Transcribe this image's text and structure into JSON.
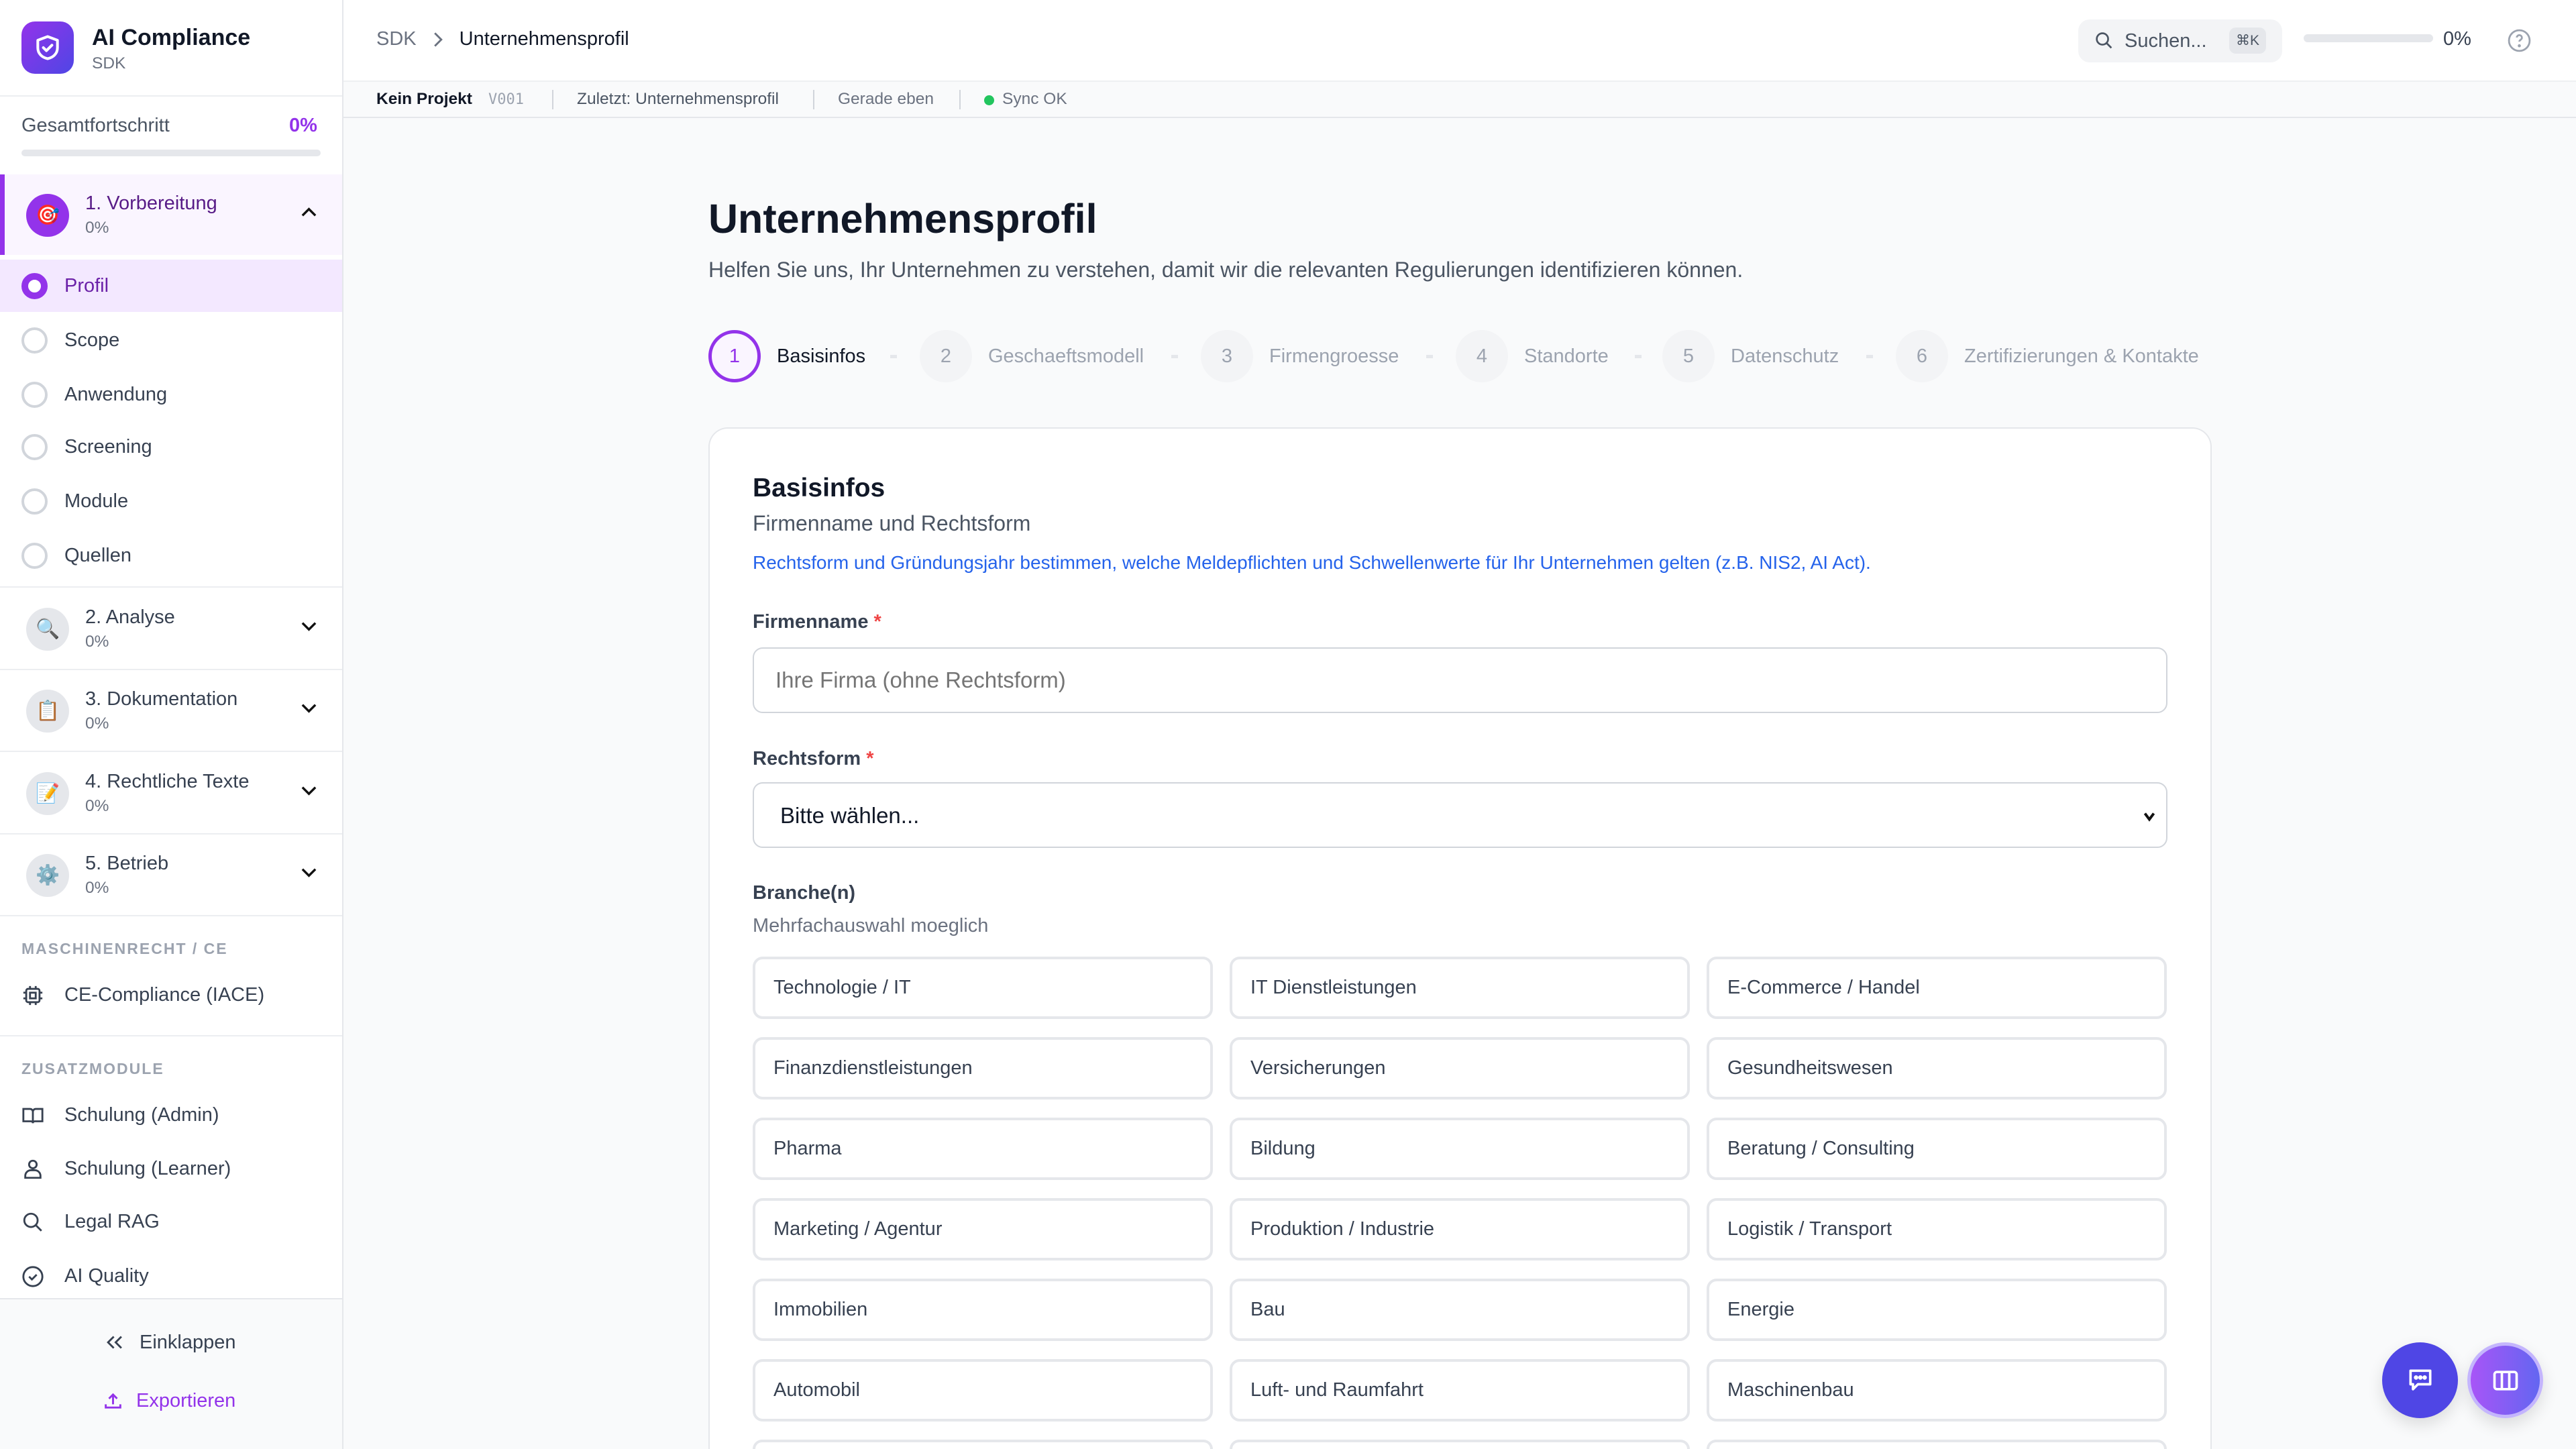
{
  "app": {
    "title": "AI Compliance",
    "subtitle": "SDK"
  },
  "colors": {
    "accent": "#9333ea",
    "brand_gradient": [
      "#9333ea",
      "#4f46e5"
    ],
    "link": "#2563eb",
    "required": "#ef4444",
    "sync_ok": "#22c55e",
    "chat_button": "#4f46e5"
  },
  "sidebar": {
    "overall": {
      "label": "Gesamtfortschritt",
      "value": "0%",
      "progress": 0
    },
    "sections": [
      {
        "title": "1. Vorbereitung",
        "progress": "0%",
        "icon": "target-icon",
        "glyph": "🎯",
        "expanded": true
      },
      {
        "title": "2. Analyse",
        "progress": "0%",
        "icon": "magnifier-icon",
        "glyph": "🔍",
        "expanded": false
      },
      {
        "title": "3. Dokumentation",
        "progress": "0%",
        "icon": "clipboard-icon",
        "glyph": "📋",
        "expanded": false
      },
      {
        "title": "4. Rechtliche Texte",
        "progress": "0%",
        "icon": "memo-icon",
        "glyph": "📝",
        "expanded": false
      },
      {
        "title": "5. Betrieb",
        "progress": "0%",
        "icon": "gear-icon",
        "glyph": "⚙️",
        "expanded": false
      }
    ],
    "substeps": [
      {
        "label": "Profil",
        "active": true
      },
      {
        "label": "Scope"
      },
      {
        "label": "Anwendung"
      },
      {
        "label": "Screening"
      },
      {
        "label": "Module"
      },
      {
        "label": "Quellen"
      }
    ],
    "group_ce": {
      "caption": "MASCHINENRECHT / CE",
      "items": [
        {
          "label": "CE-Compliance (IACE)",
          "icon": "chip-icon"
        }
      ]
    },
    "group_extra": {
      "caption": "ZUSATZMODULE",
      "items": [
        {
          "label": "Schulung (Admin)",
          "icon": "book-icon"
        },
        {
          "label": "Schulung (Learner)",
          "icon": "user-icon"
        },
        {
          "label": "Legal RAG",
          "icon": "search-icon"
        },
        {
          "label": "AI Quality",
          "icon": "check-circle-icon"
        }
      ]
    },
    "collapse": "Einklappen",
    "export": "Exportieren"
  },
  "topbar": {
    "breadcrumb": [
      "SDK",
      "Unternehmensprofil"
    ],
    "search": {
      "placeholder": "Suchen...",
      "shortcut": "⌘K"
    },
    "progress": {
      "value": "0%",
      "fraction": 0
    }
  },
  "statusbar": {
    "project": "Kein Projekt",
    "version": "V001",
    "last": "Zuletzt: Unternehmensprofil",
    "time": "Gerade eben",
    "sync": "Sync OK"
  },
  "page": {
    "title": "Unternehmensprofil",
    "subtitle": "Helfen Sie uns, Ihr Unternehmen zu verstehen, damit wir die relevanten Regulierungen identifizieren können.",
    "steps": [
      {
        "num": "1",
        "label": "Basisinfos",
        "active": true
      },
      {
        "num": "2",
        "label": "Geschaeftsmodell"
      },
      {
        "num": "3",
        "label": "Firmengroesse"
      },
      {
        "num": "4",
        "label": "Standorte"
      },
      {
        "num": "5",
        "label": "Datenschutz"
      },
      {
        "num": "6",
        "label": "Zertifizierungen & Kontakte"
      }
    ]
  },
  "card": {
    "title": "Basisinfos",
    "subtitle": "Firmenname und Rechtsform",
    "info": "Rechtsform und Gründungsjahr bestimmen, welche Meldepflichten und Schwellenwerte für Ihr Unternehmen gelten (z.B. NIS2, AI Act).",
    "company_label": "Firmenname",
    "company_placeholder": "Ihre Firma (ohne Rechtsform)",
    "company_value": "",
    "legal_label": "Rechtsform",
    "legal_value": "Bitte wählen...",
    "required_mark": "*",
    "industry_label": "Branche(n)",
    "industry_hint": "Mehrfachauswahl moeglich",
    "industries": [
      "Technologie / IT",
      "IT Dienstleistungen",
      "E-Commerce / Handel",
      "Finanzdienstleistungen",
      "Versicherungen",
      "Gesundheitswesen",
      "Pharma",
      "Bildung",
      "Beratung / Consulting",
      "Marketing / Agentur",
      "Produktion / Industrie",
      "Logistik / Transport",
      "Immobilien",
      "Bau",
      "Energie",
      "Automobil",
      "Luft- und Raumfahrt",
      "Maschinenbau"
    ]
  }
}
